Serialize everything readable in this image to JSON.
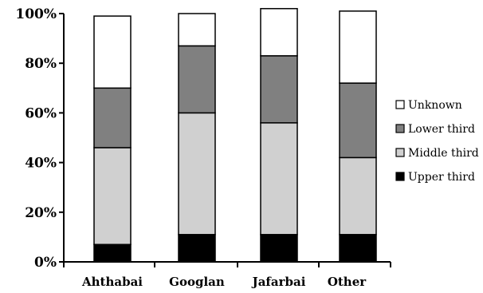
{
  "chart_data": {
    "type": "bar",
    "stacked": true,
    "percent": true,
    "categories": [
      "Ahthabai",
      "Googlan",
      "Jafarbai",
      "Other"
    ],
    "series": [
      {
        "name": "Upper third",
        "color": "#000000",
        "values": [
          7,
          11,
          11,
          11
        ]
      },
      {
        "name": "Middle third",
        "color": "#d0d0d0",
        "values": [
          39,
          49,
          45,
          31
        ]
      },
      {
        "name": "Lower third",
        "color": "#808080",
        "values": [
          24,
          27,
          27,
          30
        ]
      },
      {
        "name": "Unknown",
        "color": "#ffffff",
        "values": [
          29,
          13,
          19,
          29
        ]
      }
    ],
    "yticks": [
      "0%",
      "20%",
      "40%",
      "60%",
      "80%",
      "100%"
    ],
    "ylim": [
      0,
      100
    ],
    "legend_order": [
      "Unknown",
      "Lower third",
      "Middle third",
      "Upper third"
    ],
    "legend_position": "right",
    "grid": false
  }
}
